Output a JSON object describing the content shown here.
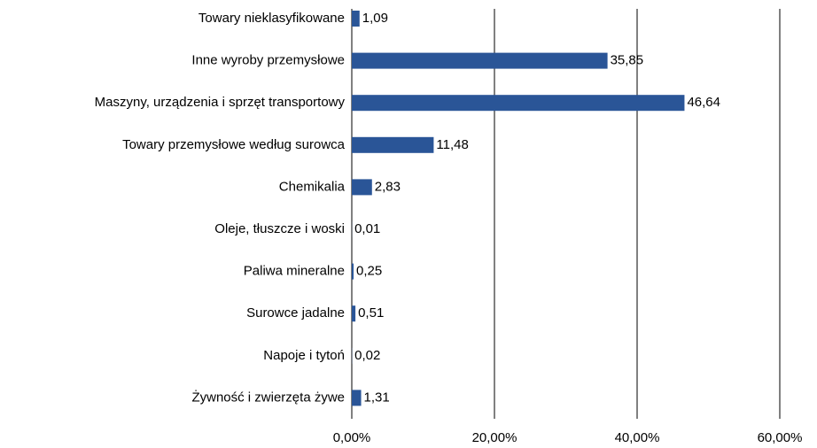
{
  "chart_data": {
    "type": "bar",
    "orientation": "horizontal",
    "categories": [
      "Towary nieklasyfikowane",
      "Inne wyroby przemysłowe",
      "Maszyny, urządzenia i sprzęt transportowy",
      "Towary przemysłowe według surowca",
      "Chemikalia",
      "Oleje, tłuszcze i woski",
      "Paliwa mineralne",
      "Surowce jadalne",
      "Napoje i tytoń",
      "Żywność i zwierzęta żywe"
    ],
    "values": [
      1.09,
      35.85,
      46.64,
      11.48,
      2.83,
      0.01,
      0.25,
      0.51,
      0.02,
      1.31
    ],
    "value_labels": [
      "1,09",
      "35,85",
      "46,64",
      "11,48",
      "2,83",
      "0,01",
      "0,25",
      "0,51",
      "0,02",
      "1,31"
    ],
    "color": "#2a5597",
    "xlim": [
      0,
      60
    ],
    "xticks": [
      {
        "value": 0,
        "label": "0,00%"
      },
      {
        "value": 20,
        "label": "20,00%"
      },
      {
        "value": 40,
        "label": "40,00%"
      },
      {
        "value": 60,
        "label": "60,00%"
      }
    ],
    "grid": true
  }
}
